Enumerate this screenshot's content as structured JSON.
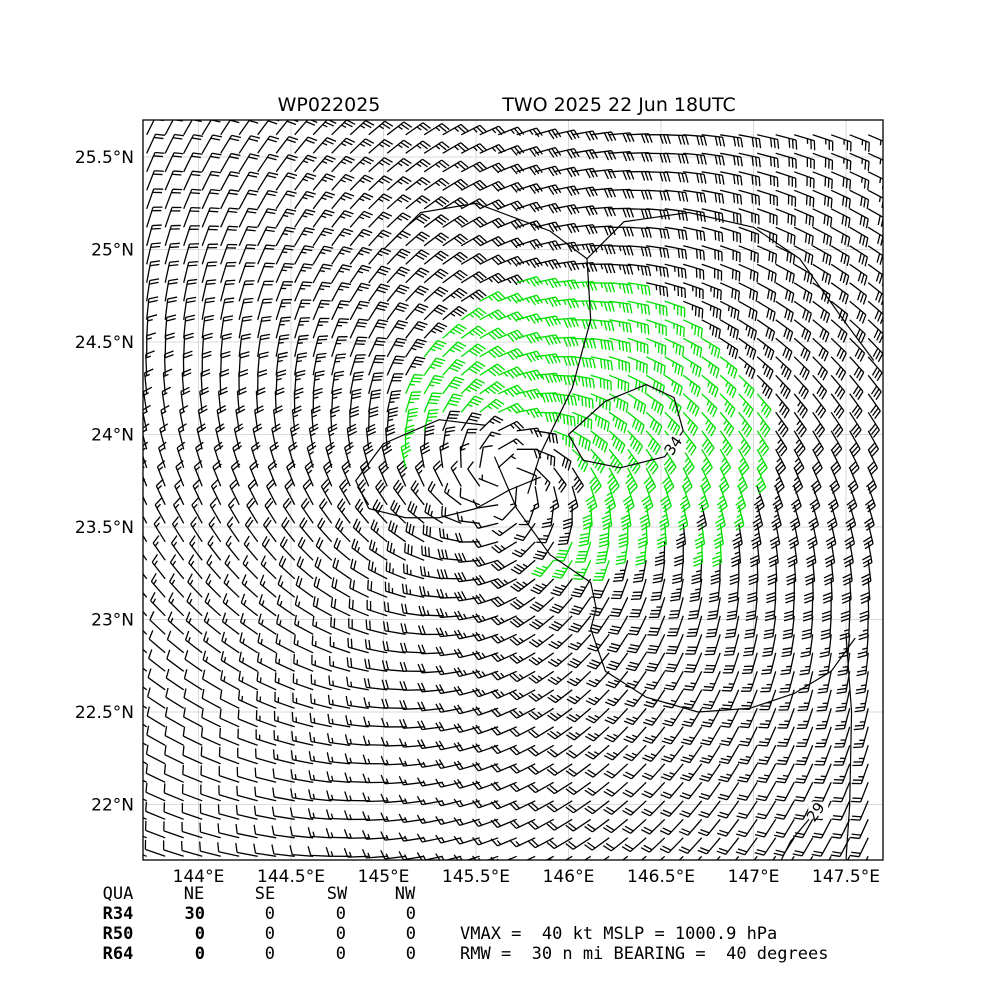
{
  "chart_data": {
    "type": "wind-barb-map",
    "title_left": "WP022025",
    "title_right": "TWO 2025 22 Jun 18UTC",
    "xlim": [
      143.7,
      147.7
    ],
    "ylim": [
      21.7,
      25.7
    ],
    "x_ticks": [
      {
        "value": 144.0,
        "label": "144°E"
      },
      {
        "value": 144.5,
        "label": "144.5°E"
      },
      {
        "value": 145.0,
        "label": "145°E"
      },
      {
        "value": 145.5,
        "label": "145.5°E"
      },
      {
        "value": 146.0,
        "label": "146°E"
      },
      {
        "value": 146.5,
        "label": "146.5°E"
      },
      {
        "value": 147.0,
        "label": "147°E"
      },
      {
        "value": 147.5,
        "label": "147.5°E"
      }
    ],
    "y_ticks": [
      {
        "value": 22.0,
        "label": "22°N"
      },
      {
        "value": 22.5,
        "label": "22.5°N"
      },
      {
        "value": 23.0,
        "label": "23°N"
      },
      {
        "value": 23.5,
        "label": "23.5°N"
      },
      {
        "value": 24.0,
        "label": "24°N"
      },
      {
        "value": 24.5,
        "label": "24.5°N"
      },
      {
        "value": 25.0,
        "label": "25°N"
      },
      {
        "value": 25.5,
        "label": "25.5°N"
      }
    ],
    "grid": true,
    "storm_center": {
      "lon": 145.65,
      "lat": 23.75
    },
    "barb_grid_step_deg": 0.1,
    "barb_color_thresholds_kt": [
      {
        "min": 34,
        "color": "#00e000"
      },
      {
        "min": 50,
        "color": "#f0b400"
      }
    ],
    "contour_labels": [
      {
        "text": "34",
        "lon": 146.58,
        "lat": 23.93
      },
      {
        "text": "29",
        "lon": 147.35,
        "lat": 21.95
      }
    ],
    "contours": [
      {
        "level": 34,
        "points": [
          [
            146.0,
            24.0
          ],
          [
            146.2,
            24.18
          ],
          [
            146.42,
            24.27
          ],
          [
            146.57,
            24.2
          ],
          [
            146.62,
            24.02
          ],
          [
            146.52,
            23.88
          ],
          [
            146.28,
            23.82
          ],
          [
            146.08,
            23.86
          ],
          [
            146.0,
            24.0
          ]
        ]
      },
      {
        "level": 29,
        "points": [
          [
            145.6,
            23.88
          ],
          [
            145.72,
            23.6
          ],
          [
            145.9,
            23.35
          ],
          [
            146.12,
            23.2
          ],
          [
            146.15,
            23.06
          ],
          [
            146.12,
            22.95
          ],
          [
            146.2,
            22.72
          ],
          [
            146.42,
            22.58
          ],
          [
            146.7,
            22.5
          ],
          [
            146.98,
            22.52
          ],
          [
            147.22,
            22.6
          ],
          [
            147.42,
            22.72
          ],
          [
            147.55,
            22.9
          ]
        ]
      },
      {
        "level": 29,
        "points": [
          [
            145.78,
            23.68
          ],
          [
            145.85,
            23.9
          ],
          [
            146.02,
            24.25
          ],
          [
            146.12,
            24.62
          ],
          [
            146.1,
            24.95
          ],
          [
            146.3,
            25.15
          ],
          [
            146.65,
            25.2
          ],
          [
            147.0,
            25.12
          ],
          [
            147.25,
            24.95
          ],
          [
            147.5,
            24.6
          ],
          [
            147.65,
            24.4
          ]
        ]
      },
      {
        "level": 29,
        "points": [
          [
            144.92,
            23.6
          ],
          [
            145.12,
            23.55
          ],
          [
            145.3,
            23.55
          ],
          [
            145.5,
            23.6
          ],
          [
            145.68,
            23.7
          ],
          [
            145.85,
            23.77
          ]
        ]
      },
      {
        "level": 29,
        "points": [
          [
            144.92,
            23.6
          ],
          [
            144.85,
            23.75
          ],
          [
            145.0,
            23.95
          ],
          [
            145.3,
            24.08
          ],
          [
            145.55,
            24.05
          ]
        ]
      },
      {
        "level": 29,
        "points": [
          [
            145.0,
            25.0
          ],
          [
            145.2,
            25.2
          ],
          [
            145.5,
            25.25
          ],
          [
            145.9,
            25.1
          ],
          [
            146.1,
            24.95
          ]
        ]
      },
      {
        "level": 29,
        "points": [
          [
            147.5,
            22.92
          ],
          [
            147.53,
            22.5
          ],
          [
            147.52,
            22.0
          ],
          [
            147.5,
            21.7
          ]
        ]
      },
      {
        "level": 29,
        "points": [
          [
            147.3,
            21.92
          ],
          [
            147.2,
            21.8
          ],
          [
            147.15,
            21.7
          ]
        ]
      }
    ]
  },
  "qua_table": {
    "headers": [
      "QUA",
      "NE",
      "SE",
      "SW",
      "NW"
    ],
    "rows": [
      {
        "label": "R34",
        "values": [
          "30",
          "0",
          "0",
          "0"
        ]
      },
      {
        "label": "R50",
        "values": [
          "0",
          "0",
          "0",
          "0"
        ]
      },
      {
        "label": "R64",
        "values": [
          "0",
          "0",
          "0",
          "0"
        ]
      }
    ]
  },
  "stats": {
    "line1": "VMAX =  40 kt MSLP = 1000.9 hPa",
    "line2": "RMW =  30 n mi BEARING =  40 degrees"
  },
  "colors": {
    "barb_default": "#000000",
    "barb_34kt": "#00e000",
    "barb_50kt": "#f0b400",
    "axes": "#000000",
    "grid": "#d9d9d9"
  }
}
